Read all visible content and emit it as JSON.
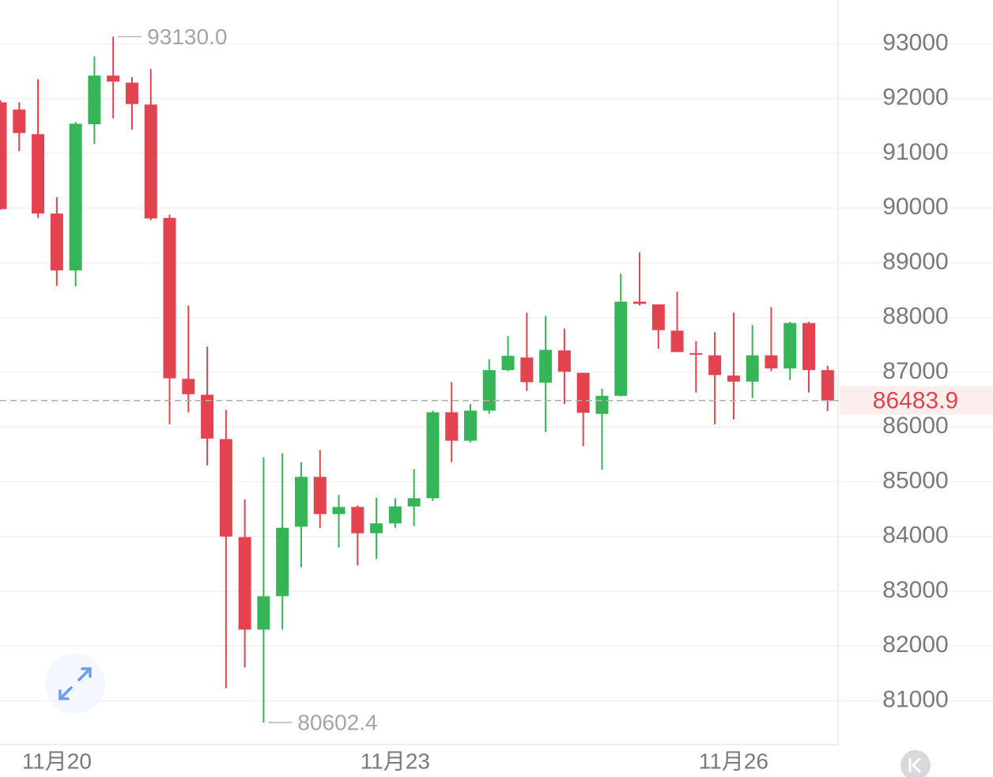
{
  "chart_data": {
    "type": "candlestick",
    "categories": [
      null,
      null,
      null,
      "11月20",
      null,
      null,
      null,
      null,
      null,
      null,
      null,
      null,
      null,
      null,
      null,
      null,
      null,
      null,
      null,
      null,
      null,
      "11月23",
      null,
      null,
      null,
      null,
      null,
      null,
      null,
      null,
      null,
      null,
      null,
      null,
      null,
      null,
      null,
      null,
      null,
      "11月26",
      null,
      null,
      null,
      null,
      null
    ],
    "open": [
      91930,
      91800,
      91350,
      89900,
      88860,
      91530,
      92420,
      92290,
      91890,
      89820,
      86880,
      86590,
      85780,
      83990,
      82300,
      82910,
      84180,
      85090,
      84410,
      84540,
      84060,
      84240,
      84550,
      84700,
      86270,
      85750,
      86300,
      87040,
      87270,
      86810,
      87400,
      86990,
      86240,
      86570,
      88290,
      88240,
      87760,
      87350,
      87310,
      86940,
      86830,
      87310,
      87070,
      87900,
      87040
    ],
    "high": [
      91970,
      91930,
      92350,
      90200,
      91570,
      92770,
      93130,
      92390,
      92540,
      89880,
      88220,
      87470,
      86310,
      84680,
      85450,
      85520,
      85360,
      85580,
      84760,
      84570,
      84710,
      84700,
      85230,
      86300,
      86820,
      86420,
      87240,
      87660,
      88090,
      88030,
      87800,
      86990,
      86700,
      88800,
      89190,
      88240,
      88470,
      87570,
      87730,
      88090,
      87860,
      88190,
      87920,
      87920,
      87120
    ],
    "low": [
      89970,
      91040,
      89820,
      88580,
      88570,
      91170,
      91640,
      91430,
      89780,
      86050,
      86270,
      85300,
      81230,
      81610,
      80602.4,
      82300,
      83440,
      84160,
      83800,
      83470,
      83590,
      84160,
      84190,
      84650,
      85360,
      85720,
      86240,
      87020,
      86660,
      85910,
      86420,
      85650,
      85220,
      86560,
      88220,
      87430,
      87370,
      86630,
      86050,
      86140,
      86530,
      87020,
      86860,
      86630,
      86290
    ],
    "close": [
      89980,
      91370,
      89900,
      88860,
      91540,
      92420,
      92310,
      91900,
      89810,
      86890,
      86600,
      85790,
      84000,
      82300,
      82910,
      84160,
      85090,
      84410,
      84540,
      84060,
      84240,
      84550,
      84700,
      86270,
      85750,
      86300,
      87040,
      87300,
      86820,
      87410,
      87010,
      86260,
      86570,
      88290,
      88250,
      87770,
      87370,
      87330,
      86950,
      86830,
      87310,
      87070,
      87900,
      87040,
      86483.9
    ],
    "up_color": "#35b558",
    "down_color": "#e2434f",
    "high_label": {
      "value": 93130,
      "label": "93130.0"
    },
    "low_label": {
      "value": 80602.4,
      "label": "80602.4"
    },
    "last_price": 86483.9,
    "ylim": [
      80200,
      93800
    ],
    "yticks": [
      81000,
      82000,
      83000,
      84000,
      85000,
      86000,
      87000,
      88000,
      89000,
      90000,
      91000,
      92000,
      93000
    ],
    "grid": true
  }
}
